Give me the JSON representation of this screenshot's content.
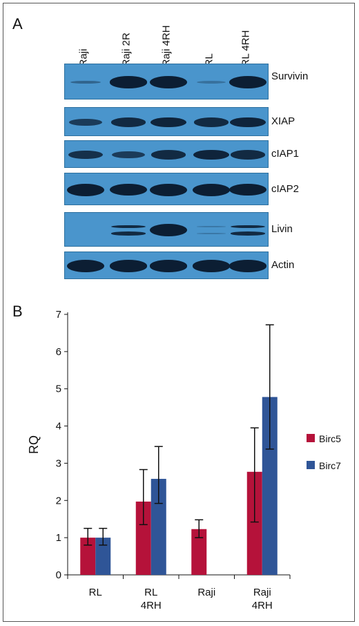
{
  "panel_a": {
    "letter": "A",
    "lanes": [
      "Raji",
      "Raji 2R",
      "Raji 4RH",
      "RL",
      "RL 4RH"
    ],
    "blots": [
      {
        "label": "Survivin",
        "intensity": [
          0.25,
          0.95,
          1.0,
          0.15,
          1.0
        ]
      },
      {
        "label": "XIAP",
        "intensity": [
          0.6,
          0.75,
          0.8,
          0.75,
          0.8
        ]
      },
      {
        "label": "cIAP1",
        "intensity": [
          0.7,
          0.6,
          0.75,
          0.8,
          0.75
        ]
      },
      {
        "label": "cIAP2",
        "intensity": [
          1.0,
          0.95,
          1.0,
          1.0,
          0.95
        ]
      },
      {
        "label": "Livin",
        "intensity": [
          0.0,
          0.75,
          1.0,
          0.1,
          0.75
        ]
      },
      {
        "label": "Actin",
        "intensity": [
          1.0,
          0.95,
          0.95,
          0.95,
          0.95
        ]
      }
    ],
    "colors": {
      "membrane": "#4a95cc",
      "band": "#0c1e33"
    }
  },
  "chart_data": {
    "type": "bar",
    "panel_letter": "B",
    "categories": [
      [
        "RL"
      ],
      [
        "RL",
        "4RH"
      ],
      [
        "Raji"
      ],
      [
        "Raji",
        "4RH"
      ]
    ],
    "series": [
      {
        "name": "Birc5",
        "color": "#b5123a",
        "values": [
          1.0,
          1.97,
          1.23,
          2.77
        ],
        "err_low": [
          0.8,
          1.35,
          1.0,
          1.42
        ],
        "err_high": [
          1.25,
          2.83,
          1.48,
          3.95
        ]
      },
      {
        "name": "Birc7",
        "color": "#2f5597",
        "values": [
          1.0,
          2.58,
          null,
          4.78
        ],
        "err_low": [
          0.8,
          1.92,
          null,
          3.38
        ],
        "err_high": [
          1.25,
          3.45,
          null,
          6.72
        ]
      }
    ],
    "ylabel": "RQ",
    "xlabel": "",
    "ylim": [
      0,
      7
    ],
    "yticks": [
      0,
      1,
      2,
      3,
      4,
      5,
      6,
      7
    ],
    "legend_position": "right",
    "grid": false
  }
}
